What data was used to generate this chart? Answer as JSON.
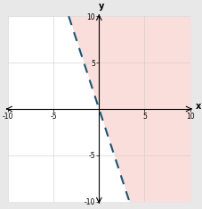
{
  "xlim": [
    -10,
    10
  ],
  "ylim": [
    -10,
    10
  ],
  "xticks": [
    -10,
    -5,
    5,
    10
  ],
  "yticks": [
    -10,
    -5,
    5,
    10
  ],
  "xticks_all": [
    -10,
    -5,
    0,
    5,
    10
  ],
  "yticks_all": [
    -10,
    -5,
    0,
    5,
    10
  ],
  "line_slope": -3,
  "line_intercept": 0,
  "line_color": "#1a5472",
  "line_dash": [
    5,
    4
  ],
  "line_width": 1.5,
  "shade_color": "#f5b7b1",
  "shade_alpha": 0.45,
  "xlabel": "x",
  "ylabel": "y",
  "axis_label_fontsize": 7,
  "tick_fontsize": 5.5,
  "grid_color": "#cccccc",
  "grid_linewidth": 0.4,
  "background_color": "#e8e8e8",
  "plot_background": "#ffffff",
  "figsize": [
    2.28,
    2.34
  ],
  "dpi": 100
}
